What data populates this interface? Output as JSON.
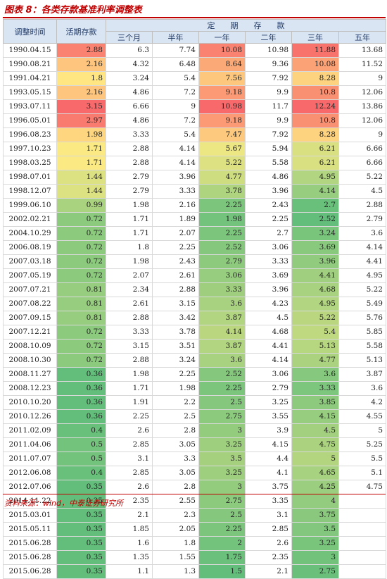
{
  "title": "图表 8：各类存款基准利率调整表",
  "source": "资料来源：wind，中泰证券研究所",
  "headers": {
    "date": "调整时间",
    "demand": "活期存款",
    "fixed_group": "定　　期　　存　　款",
    "terms": [
      "三个月",
      "半年",
      "一年",
      "二年",
      "三年",
      "五年"
    ]
  },
  "rows": [
    {
      "date": "1990.04.15",
      "cells": [
        "2.88",
        "6.3",
        "7.74",
        "10.08",
        "10.98",
        "11.88",
        "13.68"
      ]
    },
    {
      "date": "1990.08.21",
      "cells": [
        "2.16",
        "4.32",
        "6.48",
        "8.64",
        "9.36",
        "10.08",
        "11.52"
      ]
    },
    {
      "date": "1991.04.21",
      "cells": [
        "1.8",
        "3.24",
        "5.4",
        "7.56",
        "7.92",
        "8.28",
        "9"
      ]
    },
    {
      "date": "1993.05.15",
      "cells": [
        "2.16",
        "4.86",
        "7.2",
        "9.18",
        "9.9",
        "10.8",
        "12.06"
      ]
    },
    {
      "date": "1993.07.11",
      "cells": [
        "3.15",
        "6.66",
        "9",
        "10.98",
        "11.7",
        "12.24",
        "13.86"
      ]
    },
    {
      "date": "1996.05.01",
      "cells": [
        "2.97",
        "4.86",
        "7.2",
        "9.18",
        "9.9",
        "10.8",
        "12.06"
      ]
    },
    {
      "date": "1996.08.23",
      "cells": [
        "1.98",
        "3.33",
        "5.4",
        "7.47",
        "7.92",
        "8.28",
        "9"
      ]
    },
    {
      "date": "1997.10.23",
      "cells": [
        "1.71",
        "2.88",
        "4.14",
        "5.67",
        "5.94",
        "6.21",
        "6.66"
      ]
    },
    {
      "date": "1998.03.25",
      "cells": [
        "1.71",
        "2.88",
        "4.14",
        "5.22",
        "5.58",
        "6.21",
        "6.66"
      ]
    },
    {
      "date": "1998.07.01",
      "cells": [
        "1.44",
        "2.79",
        "3.96",
        "4.77",
        "4.86",
        "4.95",
        "5.22"
      ]
    },
    {
      "date": "1998.12.07",
      "cells": [
        "1.44",
        "2.79",
        "3.33",
        "3.78",
        "3.96",
        "4.14",
        "4.5"
      ]
    },
    {
      "date": "1999.06.10",
      "cells": [
        "0.99",
        "1.98",
        "2.16",
        "2.25",
        "2.43",
        "2.7",
        "2.88"
      ]
    },
    {
      "date": "2002.02.21",
      "cells": [
        "0.72",
        "1.71",
        "1.89",
        "1.98",
        "2.25",
        "2.52",
        "2.79"
      ]
    },
    {
      "date": "2004.10.29",
      "cells": [
        "0.72",
        "1.71",
        "2.07",
        "2.25",
        "2.7",
        "3.24",
        "3.6"
      ]
    },
    {
      "date": "2006.08.19",
      "cells": [
        "0.72",
        "1.8",
        "2.25",
        "2.52",
        "3.06",
        "3.69",
        "4.14"
      ]
    },
    {
      "date": "2007.03.18",
      "cells": [
        "0.72",
        "1.98",
        "2.43",
        "2.79",
        "3.33",
        "3.96",
        "4.41"
      ]
    },
    {
      "date": "2007.05.19",
      "cells": [
        "0.72",
        "2.07",
        "2.61",
        "3.06",
        "3.69",
        "4.41",
        "4.95"
      ]
    },
    {
      "date": "2007.07.21",
      "cells": [
        "0.81",
        "2.34",
        "2.88",
        "3.33",
        "3.96",
        "4.68",
        "5.22"
      ]
    },
    {
      "date": "2007.08.22",
      "cells": [
        "0.81",
        "2.61",
        "3.15",
        "3.6",
        "4.23",
        "4.95",
        "5.49"
      ]
    },
    {
      "date": "2007.09.15",
      "cells": [
        "0.81",
        "2.88",
        "3.42",
        "3.87",
        "4.5",
        "5.22",
        "5.76"
      ]
    },
    {
      "date": "2007.12.21",
      "cells": [
        "0.72",
        "3.33",
        "3.78",
        "4.14",
        "4.68",
        "5.4",
        "5.85"
      ]
    },
    {
      "date": "2008.10.09",
      "cells": [
        "0.72",
        "3.15",
        "3.51",
        "3.87",
        "4.41",
        "5.13",
        "5.58"
      ]
    },
    {
      "date": "2008.10.30",
      "cells": [
        "0.72",
        "2.88",
        "3.24",
        "3.6",
        "4.14",
        "4.77",
        "5.13"
      ]
    },
    {
      "date": "2008.11.27",
      "cells": [
        "0.36",
        "1.98",
        "2.25",
        "2.52",
        "3.06",
        "3.6",
        "3.87"
      ]
    },
    {
      "date": "2008.12.23",
      "cells": [
        "0.36",
        "1.71",
        "1.98",
        "2.25",
        "2.79",
        "3.33",
        "3.6"
      ]
    },
    {
      "date": "2010.10.20",
      "cells": [
        "0.36",
        "1.91",
        "2.2",
        "2.5",
        "3.25",
        "3.85",
        "4.2"
      ]
    },
    {
      "date": "2010.12.26",
      "cells": [
        "0.36",
        "2.25",
        "2.5",
        "2.75",
        "3.55",
        "4.15",
        "4.55"
      ]
    },
    {
      "date": "2011.02.09",
      "cells": [
        "0.4",
        "2.6",
        "2.8",
        "3",
        "3.9",
        "4.5",
        "5"
      ]
    },
    {
      "date": "2011.04.06",
      "cells": [
        "0.5",
        "2.85",
        "3.05",
        "3.25",
        "4.15",
        "4.75",
        "5.25"
      ]
    },
    {
      "date": "2011.07.07",
      "cells": [
        "0.5",
        "3.1",
        "3.3",
        "3.5",
        "4.4",
        "5",
        "5.5"
      ]
    },
    {
      "date": "2012.06.08",
      "cells": [
        "0.4",
        "2.85",
        "3.05",
        "3.25",
        "4.1",
        "4.65",
        "5.1"
      ]
    },
    {
      "date": "2012.07.06",
      "cells": [
        "0.35",
        "2.6",
        "2.8",
        "3",
        "3.75",
        "4.25",
        "4.75"
      ]
    },
    {
      "date": "2014.11.22",
      "cells": [
        "0.35",
        "2.35",
        "2.55",
        "2.75",
        "3.35",
        "4",
        ""
      ]
    },
    {
      "date": "2015.03.01",
      "cells": [
        "0.35",
        "2.1",
        "2.3",
        "2.5",
        "3.1",
        "3.75",
        ""
      ]
    },
    {
      "date": "2015.05.11",
      "cells": [
        "0.35",
        "1.85",
        "2.05",
        "2.25",
        "2.85",
        "3.5",
        ""
      ]
    },
    {
      "date": "2015.06.28",
      "cells": [
        "0.35",
        "1.6",
        "1.8",
        "2",
        "2.6",
        "3.25",
        ""
      ]
    },
    {
      "date": "2015.06.28",
      "cells": [
        "0.35",
        "1.35",
        "1.55",
        "1.75",
        "2.35",
        "3",
        ""
      ]
    },
    {
      "date": "2015.06.28",
      "cells": [
        "0.35",
        "1.1",
        "1.3",
        "1.5",
        "2.1",
        "2.75",
        ""
      ]
    }
  ],
  "heatmap_colors": {
    "low": "#63be7b",
    "mid": "#ffeb84",
    "high": "#f8696b"
  }
}
